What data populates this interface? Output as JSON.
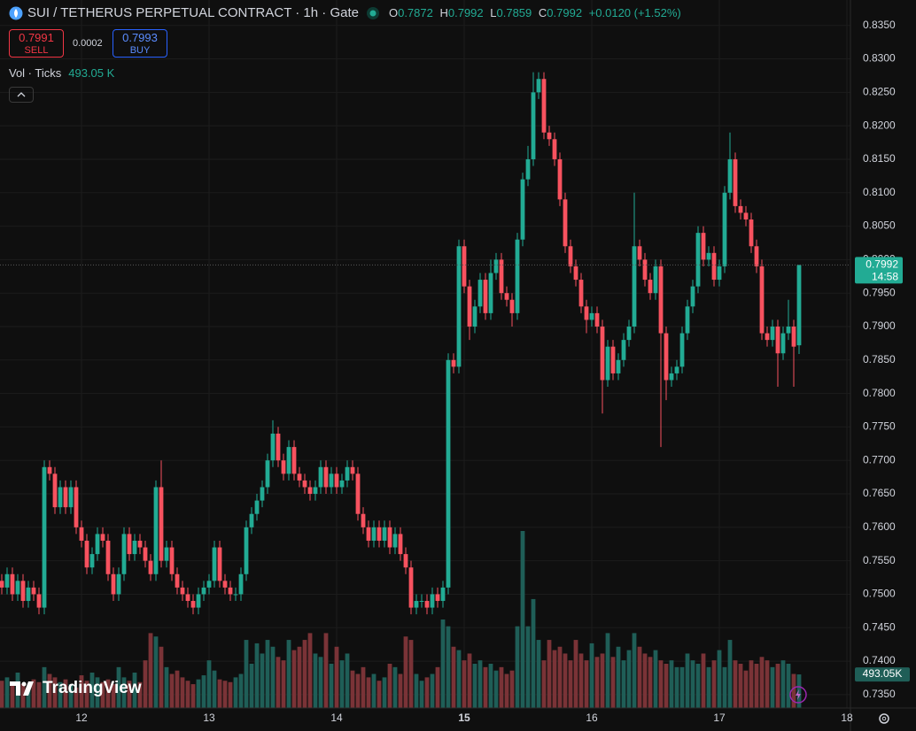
{
  "header": {
    "symbol": "SUI / TETHERUS PERPETUAL CONTRACT · 1h · Gate",
    "ohlc_letters": [
      "O",
      "H",
      "L",
      "C"
    ],
    "change": "+0.0120 (+1.52%)",
    "sell_price": "0.7991",
    "sell": "SELL",
    "spread": "0.0002",
    "buy_price": "0.7993",
    "buy": "BUY",
    "volume_title": "Vol · Ticks",
    "volume_label": "493.05 K",
    "volume_axis_label": "493.05K",
    "countdown": "14:58",
    "logo": "TradingView"
  },
  "chart_data": {
    "type": "candlestick",
    "up_color": "#22ab94",
    "down_color": "#f7525f",
    "volume_up_color": "#1f5e57",
    "volume_down_color": "#7a3337",
    "grid": true,
    "ylim": [
      0.733,
      0.8388
    ],
    "yticks": [
      {
        "value": 0.835,
        "label": "0.8350"
      },
      {
        "value": 0.83,
        "label": "0.8300"
      },
      {
        "value": 0.825,
        "label": "0.8250"
      },
      {
        "value": 0.82,
        "label": "0.8200"
      },
      {
        "value": 0.815,
        "label": "0.8150"
      },
      {
        "value": 0.81,
        "label": "0.8100"
      },
      {
        "value": 0.805,
        "label": "0.8050"
      },
      {
        "value": 0.8,
        "label": "0.8000"
      },
      {
        "value": 0.795,
        "label": "0.7950"
      },
      {
        "value": 0.79,
        "label": "0.7900"
      },
      {
        "value": 0.785,
        "label": "0.7850"
      },
      {
        "value": 0.78,
        "label": "0.7800"
      },
      {
        "value": 0.775,
        "label": "0.7750"
      },
      {
        "value": 0.77,
        "label": "0.7700"
      },
      {
        "value": 0.765,
        "label": "0.7650"
      },
      {
        "value": 0.76,
        "label": "0.7600"
      },
      {
        "value": 0.755,
        "label": "0.7550"
      },
      {
        "value": 0.75,
        "label": "0.7500"
      },
      {
        "value": 0.745,
        "label": "0.7450"
      },
      {
        "value": 0.74,
        "label": "0.7400"
      },
      {
        "value": 0.735,
        "label": "0.7350"
      }
    ],
    "xticks": [
      12,
      13,
      14,
      15,
      16,
      17,
      18
    ],
    "highlight_xtick": 15,
    "open": [
      0.752,
      0.751,
      0.753,
      0.75,
      0.752,
      0.749,
      0.751,
      0.75,
      0.748,
      0.769,
      0.768,
      0.763,
      0.766,
      0.763,
      0.766,
      0.76,
      0.758,
      0.754,
      0.756,
      0.759,
      0.758,
      0.753,
      0.75,
      0.753,
      0.759,
      0.756,
      0.758,
      0.757,
      0.755,
      0.753,
      0.766,
      0.755,
      0.757,
      0.753,
      0.751,
      0.75,
      0.749,
      0.748,
      0.75,
      0.751,
      0.752,
      0.757,
      0.752,
      0.751,
      0.75,
      0.75,
      0.753,
      0.76,
      0.762,
      0.764,
      0.766,
      0.77,
      0.774,
      0.77,
      0.768,
      0.772,
      0.768,
      0.767,
      0.766,
      0.765,
      0.766,
      0.769,
      0.766,
      0.768,
      0.766,
      0.767,
      0.769,
      0.768,
      0.762,
      0.76,
      0.758,
      0.76,
      0.758,
      0.76,
      0.757,
      0.759,
      0.756,
      0.754,
      0.748,
      0.749,
      0.749,
      0.748,
      0.75,
      0.749,
      0.751,
      0.785,
      0.784,
      0.802,
      0.796,
      0.79,
      0.793,
      0.797,
      0.792,
      0.798,
      0.8,
      0.795,
      0.794,
      0.792,
      0.803,
      0.812,
      0.815,
      0.825,
      0.827,
      0.819,
      0.818,
      0.815,
      0.809,
      0.802,
      0.799,
      0.797,
      0.793,
      0.791,
      0.792,
      0.79,
      0.782,
      0.787,
      0.783,
      0.785,
      0.788,
      0.79,
      0.802,
      0.8,
      0.797,
      0.795,
      0.799,
      0.789,
      0.782,
      0.783,
      0.784,
      0.789,
      0.793,
      0.796,
      0.804,
      0.8,
      0.801,
      0.797,
      0.799,
      0.81,
      0.815,
      0.808,
      0.807,
      0.806,
      0.802,
      0.799,
      0.789,
      0.788,
      0.79,
      0.786,
      0.789,
      0.79,
      0.7872
    ],
    "high": [
      0.753,
      0.754,
      0.754,
      0.753,
      0.753,
      0.752,
      0.752,
      0.751,
      0.77,
      0.77,
      0.769,
      0.767,
      0.767,
      0.767,
      0.767,
      0.761,
      0.759,
      0.757,
      0.76,
      0.76,
      0.759,
      0.754,
      0.754,
      0.76,
      0.76,
      0.759,
      0.759,
      0.758,
      0.756,
      0.767,
      0.77,
      0.758,
      0.758,
      0.754,
      0.752,
      0.751,
      0.75,
      0.751,
      0.752,
      0.753,
      0.758,
      0.758,
      0.753,
      0.752,
      0.751,
      0.754,
      0.761,
      0.763,
      0.765,
      0.767,
      0.771,
      0.776,
      0.775,
      0.771,
      0.773,
      0.773,
      0.769,
      0.768,
      0.767,
      0.767,
      0.77,
      0.77,
      0.769,
      0.769,
      0.768,
      0.77,
      0.77,
      0.769,
      0.763,
      0.761,
      0.761,
      0.761,
      0.761,
      0.761,
      0.76,
      0.76,
      0.757,
      0.755,
      0.75,
      0.75,
      0.75,
      0.751,
      0.751,
      0.752,
      0.786,
      0.786,
      0.803,
      0.803,
      0.797,
      0.794,
      0.798,
      0.798,
      0.8,
      0.801,
      0.801,
      0.796,
      0.795,
      0.804,
      0.813,
      0.817,
      0.828,
      0.828,
      0.828,
      0.82,
      0.819,
      0.816,
      0.81,
      0.803,
      0.8,
      0.798,
      0.794,
      0.793,
      0.793,
      0.791,
      0.788,
      0.788,
      0.786,
      0.789,
      0.791,
      0.81,
      0.803,
      0.801,
      0.798,
      0.8,
      0.8,
      0.79,
      0.784,
      0.785,
      0.79,
      0.794,
      0.797,
      0.805,
      0.805,
      0.802,
      0.802,
      0.8,
      0.811,
      0.819,
      0.816,
      0.809,
      0.808,
      0.807,
      0.803,
      0.8,
      0.79,
      0.791,
      0.791,
      0.79,
      0.794,
      0.791,
      0.7992
    ],
    "low": [
      0.75,
      0.75,
      0.749,
      0.749,
      0.748,
      0.748,
      0.749,
      0.747,
      0.747,
      0.767,
      0.762,
      0.762,
      0.762,
      0.762,
      0.759,
      0.757,
      0.753,
      0.753,
      0.755,
      0.757,
      0.752,
      0.749,
      0.749,
      0.752,
      0.755,
      0.755,
      0.756,
      0.754,
      0.752,
      0.752,
      0.754,
      0.754,
      0.752,
      0.75,
      0.749,
      0.748,
      0.747,
      0.747,
      0.749,
      0.75,
      0.751,
      0.751,
      0.75,
      0.749,
      0.749,
      0.749,
      0.752,
      0.759,
      0.761,
      0.763,
      0.765,
      0.769,
      0.769,
      0.767,
      0.767,
      0.767,
      0.766,
      0.765,
      0.764,
      0.764,
      0.765,
      0.765,
      0.765,
      0.765,
      0.765,
      0.766,
      0.767,
      0.761,
      0.759,
      0.757,
      0.757,
      0.757,
      0.757,
      0.756,
      0.756,
      0.755,
      0.753,
      0.747,
      0.747,
      0.748,
      0.747,
      0.747,
      0.748,
      0.748,
      0.75,
      0.783,
      0.783,
      0.795,
      0.788,
      0.789,
      0.792,
      0.791,
      0.791,
      0.797,
      0.794,
      0.793,
      0.79,
      0.791,
      0.802,
      0.811,
      0.814,
      0.824,
      0.818,
      0.817,
      0.814,
      0.808,
      0.801,
      0.798,
      0.796,
      0.792,
      0.789,
      0.79,
      0.789,
      0.777,
      0.781,
      0.782,
      0.782,
      0.784,
      0.787,
      0.789,
      0.799,
      0.796,
      0.794,
      0.794,
      0.772,
      0.779,
      0.781,
      0.782,
      0.783,
      0.788,
      0.792,
      0.795,
      0.799,
      0.799,
      0.796,
      0.796,
      0.798,
      0.809,
      0.807,
      0.806,
      0.805,
      0.801,
      0.798,
      0.788,
      0.787,
      0.787,
      0.781,
      0.785,
      0.788,
      0.781,
      0.7859
    ],
    "close": [
      0.751,
      0.753,
      0.75,
      0.752,
      0.749,
      0.751,
      0.75,
      0.748,
      0.769,
      0.768,
      0.763,
      0.766,
      0.763,
      0.766,
      0.76,
      0.758,
      0.754,
      0.756,
      0.759,
      0.758,
      0.753,
      0.75,
      0.753,
      0.759,
      0.756,
      0.758,
      0.757,
      0.755,
      0.753,
      0.766,
      0.755,
      0.757,
      0.753,
      0.751,
      0.75,
      0.749,
      0.748,
      0.75,
      0.751,
      0.752,
      0.757,
      0.752,
      0.751,
      0.75,
      0.75,
      0.753,
      0.76,
      0.762,
      0.764,
      0.766,
      0.77,
      0.774,
      0.77,
      0.768,
      0.772,
      0.768,
      0.767,
      0.766,
      0.765,
      0.766,
      0.769,
      0.766,
      0.768,
      0.766,
      0.767,
      0.769,
      0.768,
      0.762,
      0.76,
      0.758,
      0.76,
      0.758,
      0.76,
      0.757,
      0.759,
      0.756,
      0.754,
      0.748,
      0.749,
      0.749,
      0.748,
      0.75,
      0.749,
      0.751,
      0.785,
      0.784,
      0.802,
      0.796,
      0.79,
      0.793,
      0.797,
      0.792,
      0.798,
      0.8,
      0.795,
      0.794,
      0.792,
      0.803,
      0.812,
      0.815,
      0.825,
      0.827,
      0.819,
      0.818,
      0.815,
      0.809,
      0.802,
      0.799,
      0.797,
      0.793,
      0.791,
      0.792,
      0.79,
      0.782,
      0.787,
      0.783,
      0.785,
      0.788,
      0.79,
      0.802,
      0.8,
      0.797,
      0.795,
      0.799,
      0.789,
      0.782,
      0.783,
      0.784,
      0.789,
      0.793,
      0.796,
      0.804,
      0.8,
      0.801,
      0.797,
      0.799,
      0.81,
      0.815,
      0.808,
      0.807,
      0.806,
      0.802,
      0.799,
      0.789,
      0.788,
      0.79,
      0.786,
      0.789,
      0.79,
      0.787,
      0.7992
    ],
    "volume": [
      400,
      450,
      380,
      520,
      350,
      300,
      420,
      380,
      600,
      500,
      450,
      380,
      420,
      350,
      300,
      480,
      400,
      520,
      450,
      380,
      420,
      350,
      600,
      450,
      400,
      520,
      380,
      700,
      1100,
      1050,
      900,
      600,
      500,
      550,
      450,
      400,
      350,
      420,
      480,
      700,
      550,
      420,
      400,
      380,
      450,
      500,
      1000,
      650,
      950,
      800,
      1000,
      900,
      750,
      700,
      1000,
      850,
      900,
      1000,
      1100,
      800,
      750,
      1100,
      650,
      900,
      700,
      800,
      550,
      500,
      600,
      450,
      500,
      400,
      450,
      650,
      600,
      500,
      1050,
      1000,
      500,
      400,
      450,
      500,
      600,
      1300,
      1200,
      900,
      850,
      700,
      800,
      650,
      700,
      600,
      650,
      550,
      600,
      500,
      550,
      1200,
      2600,
      1200,
      1600,
      1000,
      700,
      1000,
      850,
      900,
      800,
      700,
      1000,
      800,
      700,
      950,
      750,
      800,
      1100,
      750,
      900,
      700,
      850,
      1100,
      900,
      800,
      750,
      850,
      700,
      650,
      700,
      600,
      600,
      800,
      700,
      650,
      800,
      600,
      700,
      850,
      600,
      1000,
      700,
      650,
      550,
      700,
      650,
      750,
      700,
      600,
      650,
      700,
      650,
      500,
      493.05
    ]
  }
}
